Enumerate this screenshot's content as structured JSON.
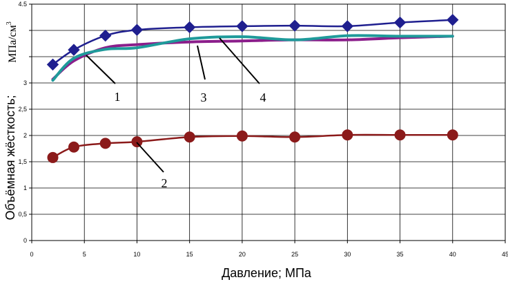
{
  "chart_data": {
    "type": "line",
    "xlabel": "Давление; МПа",
    "ylabel": "Объёмная жёсткость;",
    "ylabel_unit": "МПа/см",
    "ylabel_unit_sup": "3",
    "xlim": [
      0,
      45
    ],
    "ylim": [
      0,
      4.5
    ],
    "xticks": [
      0,
      5,
      10,
      15,
      20,
      25,
      30,
      35,
      40,
      45
    ],
    "yticks": [
      0,
      0.5,
      1,
      1.5,
      2,
      2.5,
      3,
      3.5,
      4,
      4.5
    ],
    "xtick_labels": [
      "0",
      "5",
      "10",
      "15",
      "20",
      "25",
      "30",
      "35",
      "40",
      "45"
    ],
    "ytick_labels": [
      "0",
      "0,5",
      "1",
      "1,5",
      "2",
      "2,5",
      "3",
      "",
      "",
      "4.5"
    ],
    "grid": true,
    "series": [
      {
        "name": "1",
        "color": "#1f1f8f",
        "marker": "diamond",
        "x": [
          2,
          4,
          7,
          10,
          15,
          20,
          25,
          30,
          35,
          40
        ],
        "values": [
          3.35,
          3.63,
          3.9,
          4.01,
          4.06,
          4.08,
          4.09,
          4.08,
          4.15,
          4.2
        ]
      },
      {
        "name": "2",
        "color": "#8b1a1a",
        "marker": "circle",
        "x": [
          2,
          4,
          7,
          10,
          15,
          20,
          25,
          30,
          35,
          40
        ],
        "values": [
          1.58,
          1.78,
          1.85,
          1.88,
          1.97,
          1.99,
          1.97,
          2.01,
          2.01,
          2.01
        ]
      },
      {
        "name": "3",
        "color": "#8b1e8b",
        "marker": "none",
        "x": [
          2,
          4,
          7,
          10,
          15,
          20,
          25,
          30,
          35,
          40
        ],
        "values": [
          3.07,
          3.42,
          3.67,
          3.73,
          3.78,
          3.8,
          3.82,
          3.82,
          3.86,
          3.89
        ]
      },
      {
        "name": "4",
        "color": "#1f9a9a",
        "marker": "none",
        "x": [
          2,
          4,
          7,
          10,
          15,
          20,
          25,
          30,
          35,
          40
        ],
        "values": [
          3.05,
          3.47,
          3.64,
          3.67,
          3.84,
          3.88,
          3.82,
          3.9,
          3.89,
          3.89
        ]
      }
    ],
    "curve_labels": [
      "1",
      "2",
      "3",
      "4"
    ]
  }
}
